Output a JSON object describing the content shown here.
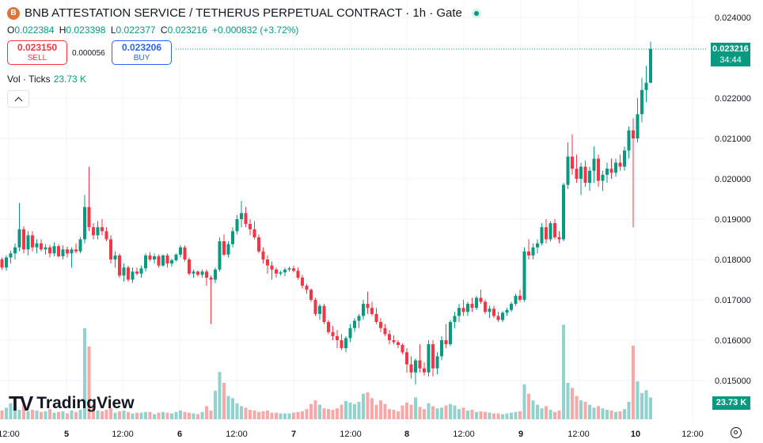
{
  "header": {
    "symbol_icon": "bnb-coin-icon",
    "symbol_icon_glyph": "B",
    "title": "BNB ATTESTATION SERVICE / TETHERUS PERPETUAL CONTRACT · 1h · Gate",
    "status_icon": "market-open-dot-icon"
  },
  "ohlc": {
    "o_label": "O",
    "o_value": "0.022384",
    "h_label": "H",
    "h_value": "0.023398",
    "l_label": "L",
    "l_value": "0.022377",
    "c_label": "C",
    "c_value": "0.023216",
    "change": "+0.000832 (+3.72%)"
  },
  "trade": {
    "sell_price": "0.023150",
    "sell_label": "SELL",
    "spread": "0.000056",
    "buy_price": "0.023206",
    "buy_label": "BUY"
  },
  "volume_legend": {
    "label": "Vol · Ticks",
    "value": "23.73 K"
  },
  "collapse_icon": "chevron-up-icon",
  "logo": {
    "mark": "TV",
    "text": "TradingView"
  },
  "price_scale": {
    "labels": [
      "0.024000",
      "0.022000",
      "0.021000",
      "0.020000",
      "0.019000",
      "0.018000",
      "0.017000",
      "0.016000",
      "0.015000"
    ],
    "current_price": "0.023216",
    "countdown": "34:44",
    "volume_tag": "23.73 K"
  },
  "settings_icon": "gear-icon",
  "colors": {
    "up": "#089981",
    "down": "#f23645",
    "up_vol": "#92d2cc",
    "down_vol": "#f7a9a7",
    "grid": "#f0f3fa"
  },
  "chart_data": {
    "type": "candlestick",
    "timeframe": "1h",
    "y_axis_ticks": [
      0.024,
      0.022,
      0.021,
      0.02,
      0.019,
      0.018,
      0.017,
      0.016,
      0.015
    ],
    "x_tick_labels": [
      "12:00",
      "5",
      "12:00",
      "6",
      "12:00",
      "7",
      "12:00",
      "8",
      "12:00",
      "9",
      "12:00",
      "10",
      "12:00"
    ],
    "last_price": 0.023216,
    "grid": true,
    "candles_ohlc": [
      [
        0.018,
        0.01805,
        0.01775,
        0.0178
      ],
      [
        0.0178,
        0.0181,
        0.01772,
        0.01805
      ],
      [
        0.01805,
        0.01822,
        0.0179,
        0.01815
      ],
      [
        0.01815,
        0.0184,
        0.018,
        0.0183
      ],
      [
        0.0183,
        0.0194,
        0.0182,
        0.01875
      ],
      [
        0.01875,
        0.01882,
        0.01815,
        0.01825
      ],
      [
        0.01825,
        0.0187,
        0.0181,
        0.0186
      ],
      [
        0.0186,
        0.0187,
        0.0182,
        0.0183
      ],
      [
        0.0183,
        0.0185,
        0.01815,
        0.0184
      ],
      [
        0.0184,
        0.0185,
        0.0182,
        0.01825
      ],
      [
        0.01825,
        0.01838,
        0.01812,
        0.0183
      ],
      [
        0.0183,
        0.01836,
        0.01805,
        0.01815
      ],
      [
        0.01815,
        0.01842,
        0.01808,
        0.01833
      ],
      [
        0.01833,
        0.01838,
        0.01805,
        0.01808
      ],
      [
        0.01808,
        0.01835,
        0.018,
        0.01825
      ],
      [
        0.01825,
        0.01832,
        0.01805,
        0.01815
      ],
      [
        0.01815,
        0.0183,
        0.0178,
        0.01825
      ],
      [
        0.01825,
        0.0184,
        0.01815,
        0.0182
      ],
      [
        0.0182,
        0.01855,
        0.01815,
        0.0185
      ],
      [
        0.0185,
        0.0196,
        0.0184,
        0.0193
      ],
      [
        0.0193,
        0.0203,
        0.0187,
        0.0188
      ],
      [
        0.0188,
        0.0189,
        0.0185,
        0.0186
      ],
      [
        0.0186,
        0.01895,
        0.0185,
        0.0188
      ],
      [
        0.0188,
        0.019,
        0.0186,
        0.0187
      ],
      [
        0.0187,
        0.0188,
        0.01845,
        0.0185
      ],
      [
        0.0185,
        0.0186,
        0.0179,
        0.018
      ],
      [
        0.018,
        0.0182,
        0.0178,
        0.0181
      ],
      [
        0.0181,
        0.01815,
        0.01755,
        0.0176
      ],
      [
        0.0176,
        0.0179,
        0.01745,
        0.0178
      ],
      [
        0.0178,
        0.01785,
        0.01745,
        0.0175
      ],
      [
        0.0175,
        0.0178,
        0.01742,
        0.0177
      ],
      [
        0.0177,
        0.0178,
        0.0176,
        0.01765
      ],
      [
        0.01765,
        0.01785,
        0.01755,
        0.01778
      ],
      [
        0.01778,
        0.01815,
        0.0177,
        0.0181
      ],
      [
        0.0181,
        0.01818,
        0.01795,
        0.018
      ],
      [
        0.018,
        0.01815,
        0.0179,
        0.01808
      ],
      [
        0.01808,
        0.01812,
        0.0178,
        0.01785
      ],
      [
        0.01785,
        0.01812,
        0.01782,
        0.0181
      ],
      [
        0.0181,
        0.01815,
        0.0178,
        0.0179
      ],
      [
        0.0179,
        0.01802,
        0.01782,
        0.01798
      ],
      [
        0.01798,
        0.01815,
        0.01795,
        0.01812
      ],
      [
        0.01812,
        0.01835,
        0.01805,
        0.0183
      ],
      [
        0.0183,
        0.01835,
        0.01795,
        0.018
      ],
      [
        0.018,
        0.01805,
        0.0176,
        0.01765
      ],
      [
        0.01765,
        0.01775,
        0.01755,
        0.0177
      ],
      [
        0.0177,
        0.01772,
        0.01758,
        0.01762
      ],
      [
        0.01762,
        0.01775,
        0.01755,
        0.0177
      ],
      [
        0.0177,
        0.01775,
        0.01735,
        0.01755
      ],
      [
        0.01755,
        0.0176,
        0.0164,
        0.0175
      ],
      [
        0.0175,
        0.0178,
        0.01742,
        0.01775
      ],
      [
        0.01775,
        0.01855,
        0.0177,
        0.01845
      ],
      [
        0.01845,
        0.01862,
        0.01808,
        0.01812
      ],
      [
        0.01812,
        0.01845,
        0.01805,
        0.01838
      ],
      [
        0.01838,
        0.0188,
        0.0183,
        0.0187
      ],
      [
        0.0187,
        0.0191,
        0.01862,
        0.019
      ],
      [
        0.019,
        0.01945,
        0.0188,
        0.01915
      ],
      [
        0.01915,
        0.0193,
        0.0188,
        0.01888
      ],
      [
        0.01888,
        0.019,
        0.0186,
        0.01875
      ],
      [
        0.01875,
        0.01895,
        0.0185,
        0.01855
      ],
      [
        0.01855,
        0.01862,
        0.01815,
        0.0182
      ],
      [
        0.0182,
        0.0183,
        0.0179,
        0.018
      ],
      [
        0.018,
        0.0181,
        0.01765,
        0.01785
      ],
      [
        0.01785,
        0.01795,
        0.0175,
        0.01775
      ],
      [
        0.01775,
        0.0178,
        0.01755,
        0.01765
      ],
      [
        0.01765,
        0.01772,
        0.0176,
        0.01768
      ],
      [
        0.01768,
        0.0178,
        0.01758,
        0.01775
      ],
      [
        0.01775,
        0.01782,
        0.0177,
        0.01778
      ],
      [
        0.01778,
        0.01785,
        0.01768,
        0.01772
      ],
      [
        0.01772,
        0.0178,
        0.0175,
        0.01755
      ],
      [
        0.01755,
        0.01762,
        0.01728,
        0.01735
      ],
      [
        0.01735,
        0.0174,
        0.01715,
        0.01725
      ],
      [
        0.01725,
        0.01728,
        0.01695,
        0.017
      ],
      [
        0.017,
        0.01705,
        0.0166,
        0.01665
      ],
      [
        0.01665,
        0.0169,
        0.0165,
        0.01685
      ],
      [
        0.01685,
        0.0169,
        0.0164,
        0.01645
      ],
      [
        0.01645,
        0.0165,
        0.01615,
        0.0162
      ],
      [
        0.0162,
        0.01635,
        0.016,
        0.0161
      ],
      [
        0.0161,
        0.01625,
        0.0158,
        0.016
      ],
      [
        0.016,
        0.01615,
        0.01575,
        0.0158
      ],
      [
        0.0158,
        0.0161,
        0.0157,
        0.01605
      ],
      [
        0.01605,
        0.0164,
        0.01595,
        0.0163
      ],
      [
        0.0163,
        0.01655,
        0.0162,
        0.01648
      ],
      [
        0.01648,
        0.01665,
        0.0163,
        0.0166
      ],
      [
        0.0166,
        0.017,
        0.0165,
        0.0169
      ],
      [
        0.0169,
        0.0172,
        0.01665,
        0.0168
      ],
      [
        0.0168,
        0.01695,
        0.0166,
        0.01665
      ],
      [
        0.01665,
        0.0168,
        0.0164,
        0.01645
      ],
      [
        0.01645,
        0.01655,
        0.0162,
        0.0163
      ],
      [
        0.0163,
        0.0164,
        0.0161,
        0.01615
      ],
      [
        0.01615,
        0.01625,
        0.0159,
        0.016
      ],
      [
        0.016,
        0.01612,
        0.0159,
        0.01595
      ],
      [
        0.01595,
        0.016,
        0.0158,
        0.01588
      ],
      [
        0.01588,
        0.01592,
        0.01565,
        0.0157
      ],
      [
        0.0157,
        0.0158,
        0.0152,
        0.0154
      ],
      [
        0.0154,
        0.0156,
        0.01505,
        0.0152
      ],
      [
        0.0152,
        0.01555,
        0.0149,
        0.0155
      ],
      [
        0.0155,
        0.0159,
        0.0152,
        0.0153
      ],
      [
        0.0153,
        0.01545,
        0.01512,
        0.0152
      ],
      [
        0.0152,
        0.016,
        0.0151,
        0.0159
      ],
      [
        0.0159,
        0.016,
        0.0151,
        0.0153
      ],
      [
        0.0153,
        0.0157,
        0.01515,
        0.0156
      ],
      [
        0.0156,
        0.0161,
        0.0155,
        0.016
      ],
      [
        0.016,
        0.0164,
        0.0158,
        0.0159
      ],
      [
        0.0159,
        0.0165,
        0.01585,
        0.01645
      ],
      [
        0.01645,
        0.0167,
        0.0163,
        0.0166
      ],
      [
        0.0166,
        0.0169,
        0.01645,
        0.0168
      ],
      [
        0.0168,
        0.017,
        0.0166,
        0.0167
      ],
      [
        0.0167,
        0.01695,
        0.0166,
        0.0169
      ],
      [
        0.0169,
        0.01705,
        0.0167,
        0.0168
      ],
      [
        0.0168,
        0.0171,
        0.01675,
        0.01705
      ],
      [
        0.01705,
        0.01725,
        0.0169,
        0.01695
      ],
      [
        0.01695,
        0.017,
        0.01665,
        0.0167
      ],
      [
        0.0167,
        0.01685,
        0.01655,
        0.01678
      ],
      [
        0.01678,
        0.01685,
        0.01655,
        0.0166
      ],
      [
        0.0166,
        0.0167,
        0.01645,
        0.0165
      ],
      [
        0.0165,
        0.01672,
        0.01645,
        0.01668
      ],
      [
        0.01668,
        0.0168,
        0.0166,
        0.01675
      ],
      [
        0.01675,
        0.01695,
        0.0167,
        0.0169
      ],
      [
        0.0169,
        0.01715,
        0.01685,
        0.0171
      ],
      [
        0.0171,
        0.01725,
        0.01695,
        0.017
      ],
      [
        0.017,
        0.0183,
        0.01695,
        0.0182
      ],
      [
        0.0182,
        0.0185,
        0.018,
        0.0181
      ],
      [
        0.0181,
        0.0184,
        0.018,
        0.0183
      ],
      [
        0.0183,
        0.0185,
        0.01815,
        0.0184
      ],
      [
        0.0184,
        0.0189,
        0.01835,
        0.0188
      ],
      [
        0.0188,
        0.019,
        0.0184,
        0.0185
      ],
      [
        0.0185,
        0.01895,
        0.01845,
        0.0189
      ],
      [
        0.0189,
        0.019,
        0.0185,
        0.01855
      ],
      [
        0.01855,
        0.0187,
        0.0184,
        0.0185
      ],
      [
        0.0185,
        0.0199,
        0.01845,
        0.01985
      ],
      [
        0.01985,
        0.0209,
        0.01975,
        0.02055
      ],
      [
        0.02055,
        0.0211,
        0.0201,
        0.02025
      ],
      [
        0.02025,
        0.0206,
        0.0199,
        0.02
      ],
      [
        0.02,
        0.0204,
        0.0196,
        0.0203
      ],
      [
        0.0203,
        0.02045,
        0.0198,
        0.0199
      ],
      [
        0.0199,
        0.0203,
        0.0197,
        0.0202
      ],
      [
        0.0202,
        0.0208,
        0.0199,
        0.0205
      ],
      [
        0.0205,
        0.0206,
        0.0198,
        0.01995
      ],
      [
        0.01995,
        0.0202,
        0.0197,
        0.0201
      ],
      [
        0.0201,
        0.0204,
        0.0199,
        0.02025
      ],
      [
        0.02025,
        0.0205,
        0.02,
        0.02015
      ],
      [
        0.02015,
        0.0205,
        0.02005,
        0.0204
      ],
      [
        0.0204,
        0.0206,
        0.0202,
        0.0203
      ],
      [
        0.0203,
        0.0208,
        0.0202,
        0.0207
      ],
      [
        0.0207,
        0.0213,
        0.0205,
        0.0212
      ],
      [
        0.0212,
        0.0215,
        0.0188,
        0.021
      ],
      [
        0.021,
        0.022,
        0.0209,
        0.0216
      ],
      [
        0.0216,
        0.0225,
        0.0214,
        0.0222
      ],
      [
        0.0222,
        0.0228,
        0.0219,
        0.02238
      ],
      [
        0.02238,
        0.0234,
        0.02237,
        0.02322
      ]
    ],
    "volume_ticks": [
      1.2,
      1.6,
      2.2,
      1.4,
      1.3,
      2.0,
      1.1,
      1.3,
      1.2,
      1.0,
      1.1,
      1.4,
      0.9,
      1.0,
      1.1,
      0.8,
      1.2,
      1.0,
      1.3,
      12.5,
      10.0,
      2.0,
      1.2,
      1.1,
      1.3,
      1.5,
      0.9,
      1.1,
      1.2,
      1.0,
      0.8,
      0.9,
      0.9,
      1.0,
      1.0,
      0.7,
      0.9,
      1.0,
      0.9,
      0.8,
      1.0,
      1.2,
      1.0,
      0.9,
      0.8,
      0.7,
      1.0,
      1.8,
      1.2,
      3.9,
      6.5,
      5.0,
      3.2,
      2.9,
      2.2,
      1.8,
      1.6,
      1.3,
      1.2,
      1.0,
      1.1,
      1.2,
      0.9,
      0.9,
      0.8,
      0.8,
      0.8,
      0.9,
      1.0,
      1.1,
      1.4,
      2.1,
      2.6,
      2.0,
      1.5,
      1.4,
      1.3,
      1.5,
      2.0,
      2.5,
      2.3,
      2.1,
      2.4,
      3.5,
      3.7,
      2.9,
      2.0,
      2.6,
      2.1,
      1.4,
      1.3,
      1.1,
      1.9,
      2.3,
      2.0,
      3.0,
      1.7,
      1.4,
      2.2,
      1.8,
      1.5,
      1.6,
      1.9,
      2.1,
      1.9,
      1.4,
      1.6,
      1.2,
      1.3,
      1.0,
      1.1,
      1.0,
      0.9,
      0.8,
      0.8,
      0.7,
      0.8,
      0.9,
      1.0,
      1.1,
      4.8,
      3.5,
      2.6,
      2.0,
      1.5,
      1.8,
      1.3,
      1.0,
      1.2,
      13.0,
      5.0,
      4.3,
      3.2,
      2.6,
      2.4,
      2.0,
      1.6,
      1.8,
      1.5,
      1.3,
      1.2,
      1.0,
      1.1,
      1.4,
      2.4,
      10.1,
      5.2,
      3.6,
      4.0,
      3.0
    ]
  }
}
